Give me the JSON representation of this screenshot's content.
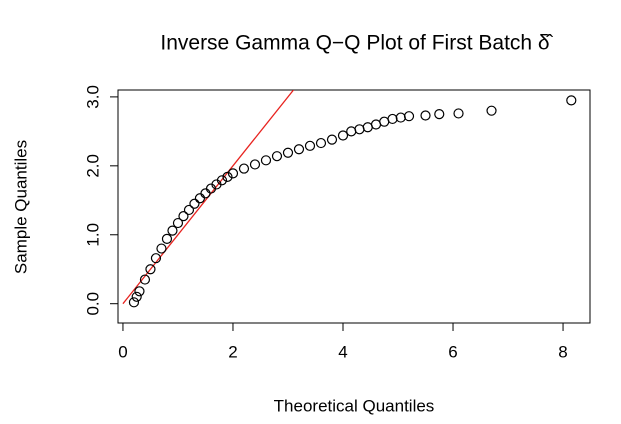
{
  "chart_data": {
    "type": "scatter",
    "title": "Inverse Gamma Q−Q Plot of First Batch δ̂",
    "x_label": "Theoretical Quantiles",
    "y_label": "Sample Quantiles",
    "xlim": [
      -0.09,
      8.49
    ],
    "ylim": [
      -0.28,
      3.1
    ],
    "xticks": [
      0,
      2,
      4,
      6,
      8
    ],
    "yticks": [
      {
        "value": 0,
        "label": "0.0"
      },
      {
        "value": 1,
        "label": "1.0"
      },
      {
        "value": 2,
        "label": "2.0"
      },
      {
        "value": 3,
        "label": "3.0"
      }
    ],
    "points": {
      "color": "#000000",
      "x": [
        0.2,
        0.25,
        0.3,
        0.4,
        0.5,
        0.6,
        0.7,
        0.8,
        0.9,
        1.0,
        1.1,
        1.2,
        1.3,
        1.4,
        1.5,
        1.6,
        1.7,
        1.8,
        1.9,
        2.0,
        2.2,
        2.4,
        2.6,
        2.8,
        3.0,
        3.2,
        3.4,
        3.6,
        3.8,
        4.0,
        4.15,
        4.3,
        4.45,
        4.6,
        4.75,
        4.9,
        5.05,
        5.2,
        5.5,
        5.75,
        6.1,
        6.7,
        8.15
      ],
      "values": [
        0.02,
        0.1,
        0.18,
        0.35,
        0.5,
        0.66,
        0.8,
        0.94,
        1.06,
        1.17,
        1.27,
        1.36,
        1.45,
        1.53,
        1.6,
        1.67,
        1.73,
        1.79,
        1.84,
        1.89,
        1.96,
        2.02,
        2.08,
        2.14,
        2.19,
        2.24,
        2.29,
        2.33,
        2.38,
        2.44,
        2.5,
        2.53,
        2.56,
        2.6,
        2.64,
        2.68,
        2.7,
        2.72,
        2.73,
        2.75,
        2.76,
        2.8,
        2.95
      ]
    },
    "line": {
      "color": "#e8231f",
      "x": [
        0,
        3.1
      ],
      "values": [
        0,
        3.1
      ]
    }
  }
}
